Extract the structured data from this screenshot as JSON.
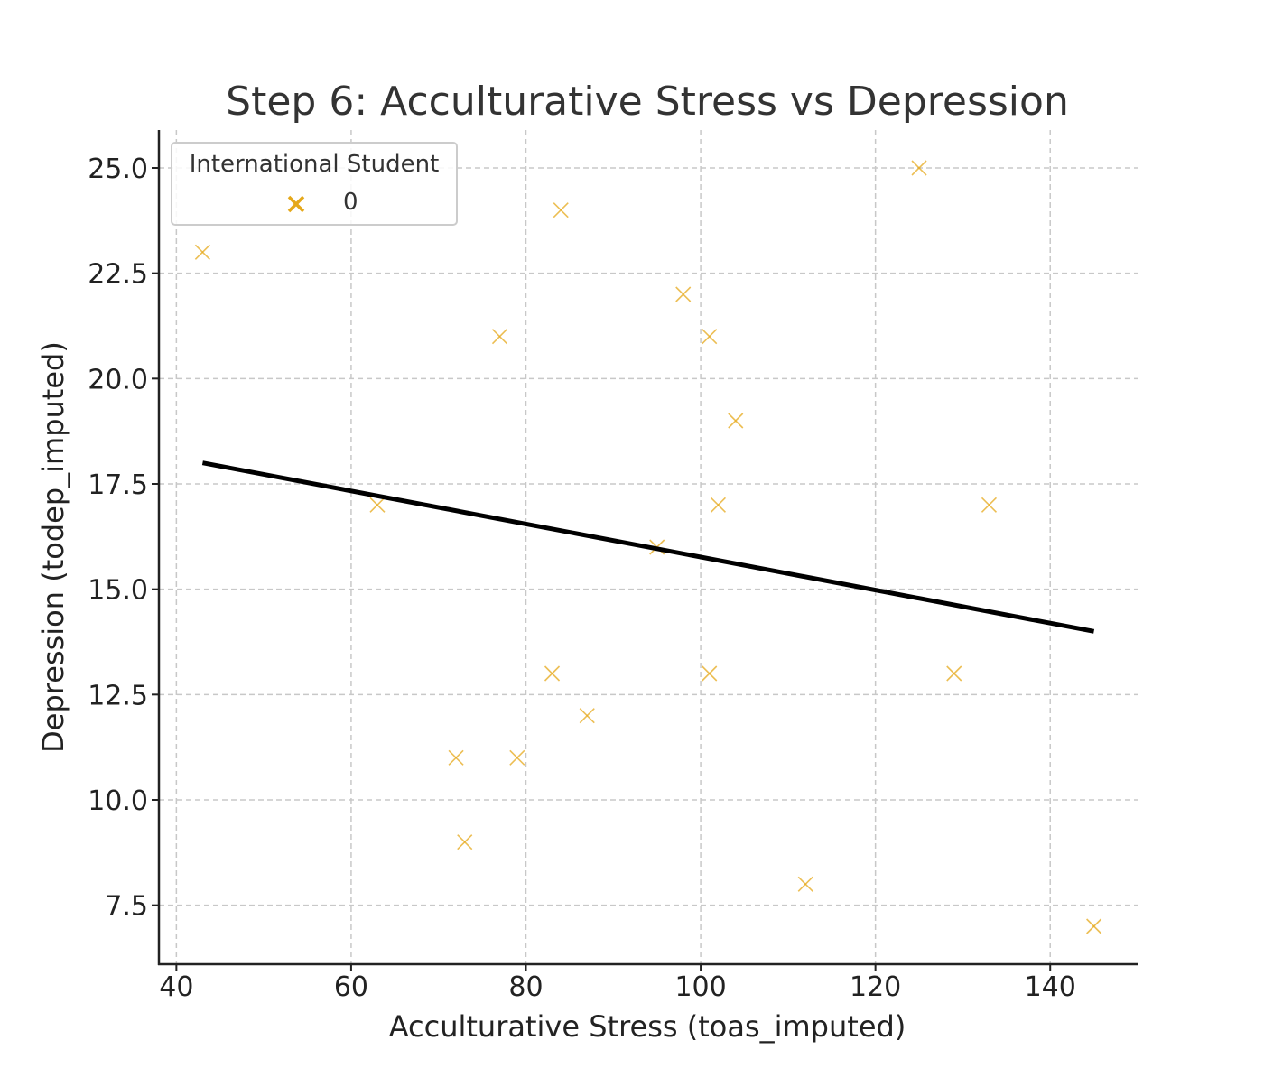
{
  "chart_data": {
    "type": "scatter",
    "title": "Step 6: Acculturative Stress vs Depression",
    "xlabel": "Acculturative Stress (toas_imputed)",
    "ylabel": "Depression (todep_imputed)",
    "xlim": [
      38,
      150
    ],
    "ylim": [
      6.1,
      25.9
    ],
    "xticks": [
      40,
      60,
      80,
      100,
      120,
      140
    ],
    "yticks": [
      7.5,
      10.0,
      12.5,
      15.0,
      17.5,
      20.0,
      22.5,
      25.0
    ],
    "xtick_labels": [
      "40",
      "60",
      "80",
      "100",
      "120",
      "140"
    ],
    "ytick_labels": [
      "7.5",
      "10.0",
      "12.5",
      "15.0",
      "17.5",
      "20.0",
      "22.5",
      "25.0"
    ],
    "grid": true,
    "marker_color": "#e5a81a",
    "line_color": "#000000",
    "legend": {
      "title": "International Student",
      "placement": "top-left",
      "entries": [
        {
          "label": "0",
          "marker": "x-icon",
          "color": "#e5a81a"
        }
      ]
    },
    "series": [
      {
        "name": "0",
        "points": [
          {
            "x": 43,
            "y": 23
          },
          {
            "x": 63,
            "y": 17
          },
          {
            "x": 72,
            "y": 11
          },
          {
            "x": 73,
            "y": 9
          },
          {
            "x": 77,
            "y": 21
          },
          {
            "x": 79,
            "y": 11
          },
          {
            "x": 83,
            "y": 13
          },
          {
            "x": 84,
            "y": 24
          },
          {
            "x": 87,
            "y": 12
          },
          {
            "x": 95,
            "y": 16
          },
          {
            "x": 98,
            "y": 22
          },
          {
            "x": 101,
            "y": 21
          },
          {
            "x": 101,
            "y": 13
          },
          {
            "x": 102,
            "y": 17
          },
          {
            "x": 104,
            "y": 19
          },
          {
            "x": 112,
            "y": 8
          },
          {
            "x": 125,
            "y": 25
          },
          {
            "x": 129,
            "y": 13
          },
          {
            "x": 133,
            "y": 17
          },
          {
            "x": 145,
            "y": 7
          }
        ]
      }
    ],
    "regression_line": {
      "x": [
        43,
        145
      ],
      "y": [
        18.0,
        14.0
      ]
    }
  }
}
